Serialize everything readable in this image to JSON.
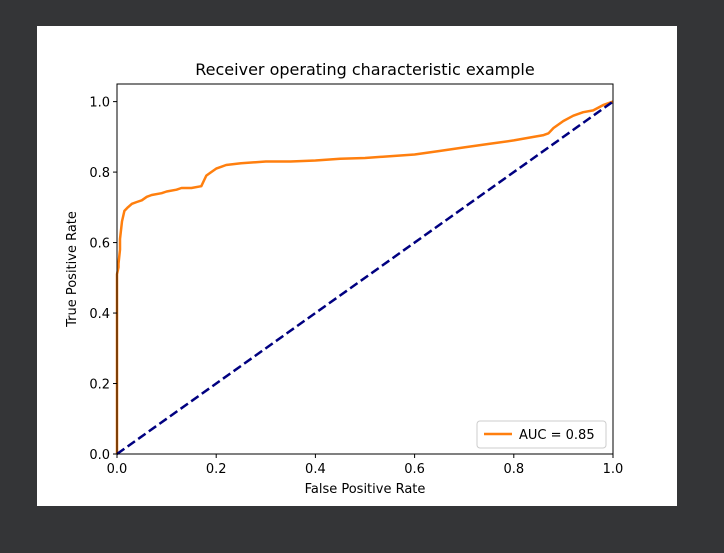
{
  "chart_data": {
    "type": "line",
    "title": "Receiver operating characteristic example",
    "xlabel": "False Positive Rate",
    "ylabel": "True Positive Rate",
    "xlim": [
      0.0,
      1.0
    ],
    "ylim": [
      0.0,
      1.05
    ],
    "xticks": [
      "0.0",
      "0.2",
      "0.4",
      "0.6",
      "0.8",
      "1.0"
    ],
    "yticks": [
      "0.0",
      "0.2",
      "0.4",
      "0.6",
      "0.8",
      "1.0"
    ],
    "grid": false,
    "legend_position": "lower right",
    "series": [
      {
        "name": "AUC = 0.85",
        "color": "#ff7f0e",
        "style": "solid",
        "x": [
          0.0,
          0.0,
          0.003,
          0.003,
          0.006,
          0.006,
          0.01,
          0.015,
          0.022,
          0.03,
          0.04,
          0.05,
          0.06,
          0.07,
          0.09,
          0.1,
          0.12,
          0.13,
          0.15,
          0.17,
          0.175,
          0.18,
          0.19,
          0.2,
          0.21,
          0.22,
          0.25,
          0.3,
          0.35,
          0.4,
          0.45,
          0.5,
          0.55,
          0.6,
          0.65,
          0.7,
          0.75,
          0.8,
          0.84,
          0.86,
          0.87,
          0.88,
          0.9,
          0.92,
          0.94,
          0.96,
          0.98,
          1.0
        ],
        "y": [
          0.0,
          0.51,
          0.53,
          0.54,
          0.58,
          0.61,
          0.66,
          0.69,
          0.7,
          0.71,
          0.715,
          0.72,
          0.73,
          0.735,
          0.74,
          0.745,
          0.75,
          0.755,
          0.755,
          0.76,
          0.775,
          0.79,
          0.8,
          0.81,
          0.815,
          0.82,
          0.825,
          0.83,
          0.83,
          0.833,
          0.838,
          0.84,
          0.845,
          0.85,
          0.86,
          0.87,
          0.88,
          0.89,
          0.9,
          0.905,
          0.91,
          0.925,
          0.945,
          0.96,
          0.97,
          0.975,
          0.99,
          1.0
        ]
      },
      {
        "name": "",
        "color": "#000080",
        "style": "dashed",
        "x": [
          0.0,
          1.0
        ],
        "y": [
          0.0,
          1.0
        ]
      }
    ]
  }
}
